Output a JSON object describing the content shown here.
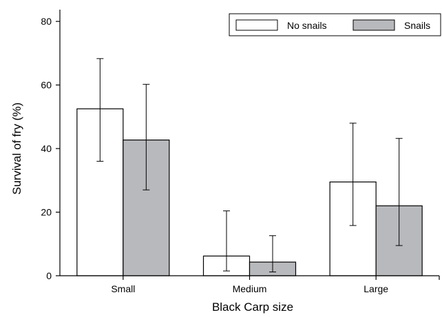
{
  "chart_data": {
    "type": "bar",
    "xlabel": "Black Carp size",
    "ylabel": "Survival of fry (%)",
    "categories": [
      "Small",
      "Medium",
      "Large"
    ],
    "ylim": [
      0,
      85
    ],
    "yticks": [
      0,
      20,
      40,
      60,
      80
    ],
    "legend_position": "top-right",
    "series": [
      {
        "name": "No snails",
        "color": "#ffffff",
        "values": [
          52.5,
          6.2,
          29.5
        ],
        "error_low": [
          36.0,
          1.5,
          15.8
        ],
        "error_high": [
          68.3,
          20.4,
          48.0
        ]
      },
      {
        "name": "Snails",
        "color": "#b8b9bc",
        "values": [
          42.7,
          4.3,
          22.0
        ],
        "error_low": [
          27.0,
          1.2,
          9.5
        ],
        "error_high": [
          60.2,
          12.6,
          43.2
        ]
      }
    ]
  }
}
